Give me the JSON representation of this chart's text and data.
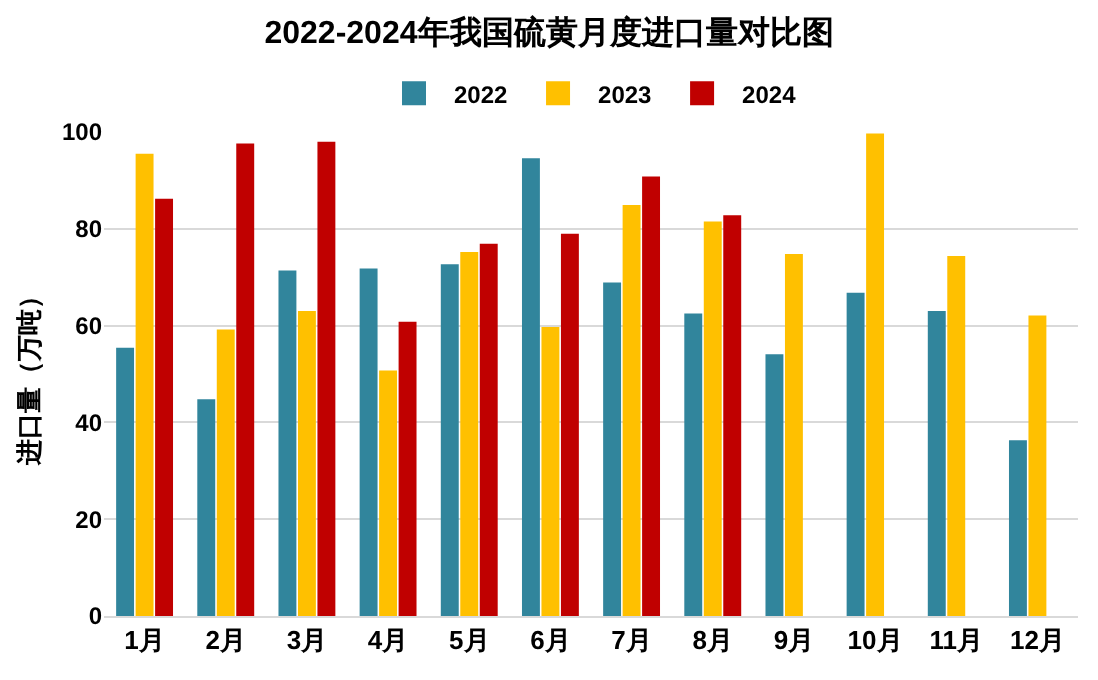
{
  "chart_data": {
    "type": "bar",
    "title": "2022-2024年我国硫黄月度进口量对比图",
    "ylabel": "进口量（万吨）",
    "categories": [
      "1月",
      "2月",
      "3月",
      "4月",
      "5月",
      "6月",
      "7月",
      "8月",
      "9月",
      "10月",
      "11月",
      "12月"
    ],
    "series": [
      {
        "name": "2022",
        "color": "#31859c",
        "values": [
          55.4,
          44.8,
          71.4,
          71.8,
          72.7,
          94.6,
          68.9,
          62.5,
          54.1,
          66.8,
          63.0,
          36.3
        ]
      },
      {
        "name": "2023",
        "color": "#ffc000",
        "values": [
          95.5,
          59.2,
          63.0,
          50.7,
          75.2,
          59.7,
          84.9,
          81.5,
          74.8,
          99.7,
          74.4,
          62.1
        ]
      },
      {
        "name": "2024",
        "color": "#c00000",
        "values": [
          86.2,
          97.6,
          98.0,
          60.8,
          76.9,
          79.0,
          90.8,
          82.8,
          null,
          null,
          null,
          null
        ]
      }
    ],
    "ylim": [
      0,
      100
    ],
    "yticks": [
      0,
      20,
      40,
      60,
      80,
      100
    ],
    "grid": "y",
    "legend": "top"
  }
}
